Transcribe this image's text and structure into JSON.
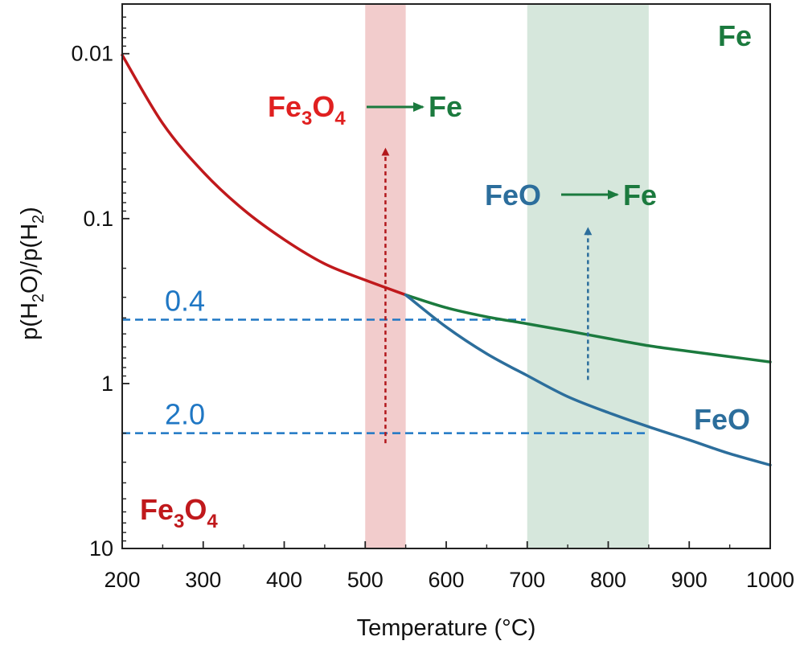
{
  "chart_data": {
    "type": "line",
    "title": "",
    "xlabel": "Temperature (°C)",
    "ylabel": "p(H2O)/p(H2)",
    "xlim": [
      200,
      1000
    ],
    "ylim_log": [
      0.005,
      10
    ],
    "y_axis": {
      "scale": "log",
      "inverted": true
    },
    "x_ticks": [
      "200",
      "300",
      "400",
      "500",
      "600",
      "700",
      "800",
      "900",
      "1000"
    ],
    "y_ticks": [
      {
        "value": 0.01,
        "label": "0.01"
      },
      {
        "value": 0.1,
        "label": "0.1"
      },
      {
        "value": 1,
        "label": "1"
      },
      {
        "value": 10,
        "label": "10"
      }
    ],
    "series": [
      {
        "key": "fe3o4",
        "color": "#c0191c",
        "x": [
          200,
          250,
          300,
          350,
          400,
          450,
          500,
          550
        ],
        "y": [
          0.0102,
          0.0265,
          0.0522,
          0.0885,
          0.134,
          0.188,
          0.236,
          0.29
        ]
      },
      {
        "key": "fe",
        "color": "#1b7a3e",
        "x": [
          550,
          600,
          650,
          700,
          750,
          800,
          850,
          900,
          950,
          1000
        ],
        "y": [
          0.29,
          0.347,
          0.394,
          0.434,
          0.48,
          0.533,
          0.59,
          0.638,
          0.687,
          0.74
        ]
      },
      {
        "key": "feo",
        "color": "#2c6e9c",
        "x": [
          550,
          600,
          650,
          700,
          750,
          800,
          850,
          900,
          950,
          1000
        ],
        "y": [
          0.29,
          0.454,
          0.66,
          0.895,
          1.2,
          1.5,
          1.83,
          2.2,
          2.66,
          3.12
        ]
      }
    ],
    "bands": [
      {
        "key": "fe3o4-to-fe",
        "x": [
          500,
          550
        ],
        "color": "#e8a2a2"
      },
      {
        "key": "feo-to-fe",
        "x": [
          700,
          850
        ],
        "color": "#b5d3bf"
      }
    ],
    "reference_lines": [
      {
        "key": "ratio-04",
        "label": "0.4",
        "y": 0.41,
        "x_end": 698,
        "color": "#1f77c4"
      },
      {
        "key": "ratio-20",
        "label": "2.0",
        "y": 2.0,
        "x_end": 848,
        "color": "#1f77c4"
      }
    ],
    "arrows": [
      {
        "key": "red-arrow",
        "x": 525,
        "y_from": 2.3,
        "y_to": 0.038,
        "color": "#b2171b"
      },
      {
        "key": "blue-arrow",
        "x": 775,
        "y_from": 0.95,
        "y_to": 0.115,
        "color": "#2c6e9c"
      }
    ],
    "annotations": {
      "fe3o4_to_fe": {
        "from_base": "Fe",
        "from_sub1": "3",
        "from_mid": "O",
        "from_sub2": "4",
        "to": "Fe",
        "from_color": "#e02020",
        "to_color": "#1b7a3e"
      },
      "feo_to_fe": {
        "from": "FeO",
        "to": "Fe",
        "from_color": "#2c6e9c",
        "to_color": "#1b7a3e"
      },
      "region_fe": {
        "text": "Fe",
        "color": "#1b7a3e"
      },
      "region_feo": {
        "text": "FeO",
        "color": "#2c6e9c"
      },
      "region_fe3o4": {
        "base": "Fe",
        "sub1": "3",
        "mid": "O",
        "sub2": "4",
        "color": "#c0191c"
      }
    }
  }
}
